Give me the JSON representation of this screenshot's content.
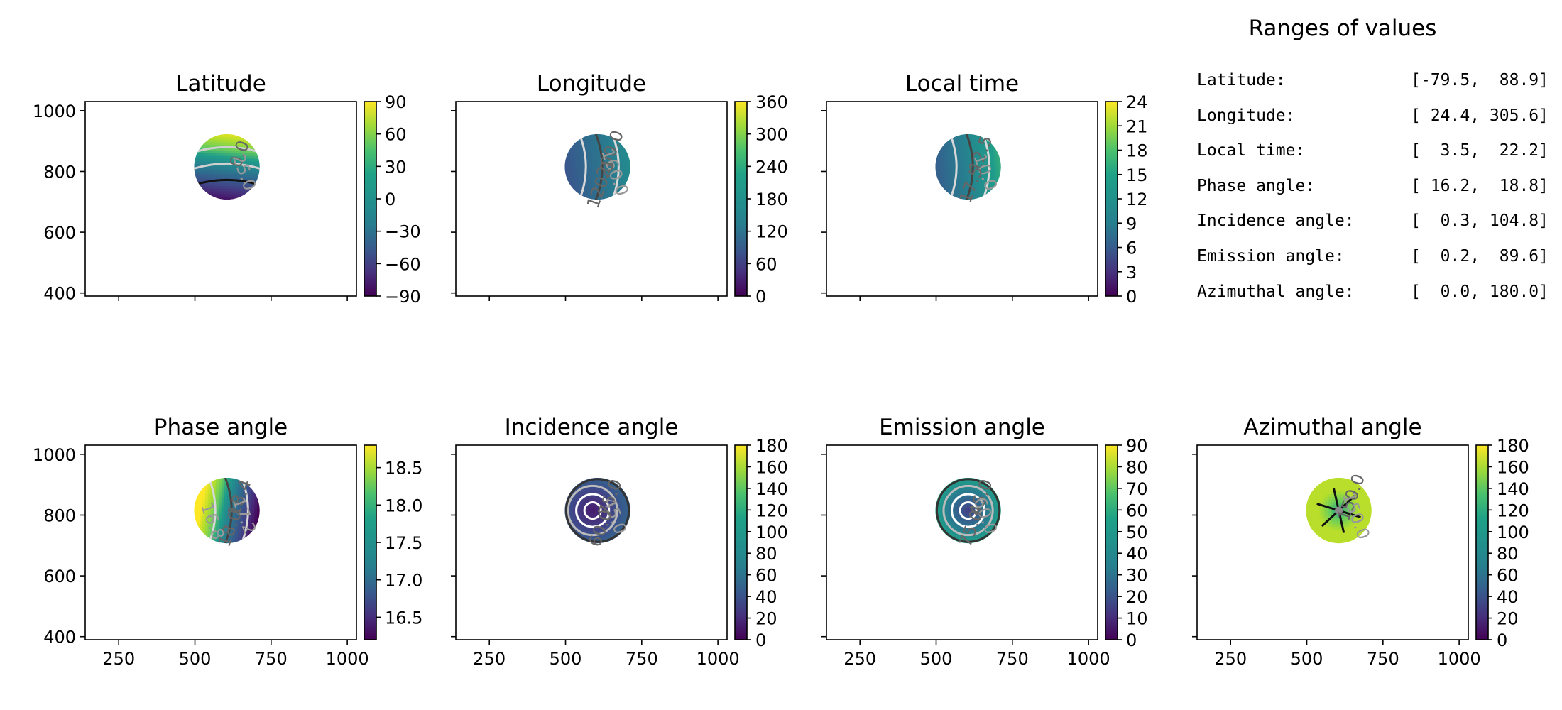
{
  "ranges_panel": {
    "title": "Ranges of values",
    "rows": [
      {
        "label": "Latitude:",
        "value": "[-79.5,  88.9]"
      },
      {
        "label": "Longitude:",
        "value": "[ 24.4, 305.6]"
      },
      {
        "label": "Local time:",
        "value": "[  3.5,  22.2]"
      },
      {
        "label": "Phase angle:",
        "value": "[ 16.2,  18.8]"
      },
      {
        "label": "Incidence angle:",
        "value": "[  0.3, 104.8]"
      },
      {
        "label": "Emission angle:",
        "value": "[  0.2,  89.6]"
      },
      {
        "label": "Azimuthal angle:",
        "value": "[  0.0, 180.0]"
      }
    ]
  },
  "chart_data": [
    {
      "type": "heatmap",
      "title": "Latitude",
      "xlim": [
        140,
        1030
      ],
      "ylim": [
        390,
        1030
      ],
      "xticks": [
        250,
        500,
        750,
        1000
      ],
      "xticklabels": [
        "",
        "",
        "",
        ""
      ],
      "yticks": [
        400,
        600,
        800,
        1000
      ],
      "yticklabels": [
        "400",
        "600",
        "800",
        "1000"
      ],
      "colorbar": {
        "min": -90,
        "max": 90,
        "ticks": [
          -90,
          -60,
          -30,
          0,
          30,
          60,
          90
        ],
        "ticklabels": [
          "−90",
          "−60",
          "−30",
          "0",
          "30",
          "60",
          "90"
        ]
      },
      "disk": {
        "cx": 605,
        "cy": 815,
        "r": 110
      },
      "field": "lat",
      "contour_labels": [
        "0.0",
        "25.0"
      ]
    },
    {
      "type": "heatmap",
      "title": "Longitude",
      "xlim": [
        140,
        1030
      ],
      "ylim": [
        390,
        1030
      ],
      "xticks": [
        250,
        500,
        750,
        1000
      ],
      "xticklabels": [
        "",
        "",
        "",
        ""
      ],
      "yticks": [
        400,
        600,
        800,
        1000
      ],
      "yticklabels": [
        "",
        "",
        "",
        ""
      ],
      "colorbar": {
        "min": 0,
        "max": 360,
        "ticks": [
          0,
          60,
          120,
          180,
          240,
          300,
          360
        ],
        "ticklabels": [
          "0",
          "60",
          "120",
          "180",
          "240",
          "300",
          "360"
        ]
      },
      "disk": {
        "cx": 605,
        "cy": 815,
        "r": 110
      },
      "field": "lon",
      "contour_labels": [
        "200.0",
        "160.0",
        "120.0"
      ]
    },
    {
      "type": "heatmap",
      "title": "Local time",
      "xlim": [
        140,
        1030
      ],
      "ylim": [
        390,
        1030
      ],
      "xticks": [
        250,
        500,
        750,
        1000
      ],
      "xticklabels": [
        "",
        "",
        "",
        ""
      ],
      "yticks": [
        400,
        600,
        800,
        1000
      ],
      "yticklabels": [
        "",
        "",
        "",
        ""
      ],
      "colorbar": {
        "min": 0,
        "max": 24,
        "ticks": [
          0,
          3,
          6,
          9,
          12,
          15,
          18,
          21,
          24
        ],
        "ticklabels": [
          "0",
          "3",
          "6",
          "9",
          "12",
          "15",
          "18",
          "21",
          "24"
        ]
      },
      "disk": {
        "cx": 605,
        "cy": 815,
        "r": 110
      },
      "field": "lt",
      "contour_labels": [
        "12.5",
        "10.0",
        "17.5"
      ]
    },
    {
      "type": "heatmap",
      "title": "Phase angle",
      "xlim": [
        140,
        1030
      ],
      "ylim": [
        390,
        1030
      ],
      "xticks": [
        250,
        500,
        750,
        1000
      ],
      "xticklabels": [
        "250",
        "500",
        "750",
        "1000"
      ],
      "yticks": [
        400,
        600,
        800,
        1000
      ],
      "yticklabels": [
        "400",
        "600",
        "800",
        "1000"
      ],
      "colorbar": {
        "min": 16.2,
        "max": 18.8,
        "ticks": [
          16.5,
          17.0,
          17.5,
          18.0,
          18.5
        ],
        "ticklabels": [
          "16.5",
          "17.0",
          "17.5",
          "18.0",
          "18.5"
        ]
      },
      "disk": {
        "cx": 605,
        "cy": 815,
        "r": 110
      },
      "field": "phase",
      "contour_labels": [
        "18.4",
        "17.2",
        "18.0",
        "16.8"
      ]
    },
    {
      "type": "heatmap",
      "title": "Incidence angle",
      "xlim": [
        140,
        1030
      ],
      "ylim": [
        390,
        1030
      ],
      "xticks": [
        250,
        500,
        750,
        1000
      ],
      "xticklabels": [
        "250",
        "500",
        "750",
        "1000"
      ],
      "yticks": [
        400,
        600,
        800,
        1000
      ],
      "yticklabels": [
        "",
        "",
        "",
        ""
      ],
      "colorbar": {
        "min": 0,
        "max": 180,
        "ticks": [
          0,
          20,
          40,
          60,
          80,
          100,
          120,
          140,
          160,
          180
        ],
        "ticklabels": [
          "0",
          "20",
          "40",
          "60",
          "80",
          "100",
          "120",
          "140",
          "160",
          "180"
        ]
      },
      "disk": {
        "cx": 605,
        "cy": 815,
        "r": 110
      },
      "field": "inc",
      "contour_labels": [
        "75.0",
        "45.0",
        "60.0"
      ]
    },
    {
      "type": "heatmap",
      "title": "Emission angle",
      "xlim": [
        140,
        1030
      ],
      "ylim": [
        390,
        1030
      ],
      "xticks": [
        250,
        500,
        750,
        1000
      ],
      "xticklabels": [
        "250",
        "500",
        "750",
        "1000"
      ],
      "yticks": [
        400,
        600,
        800,
        1000
      ],
      "yticklabels": [
        "",
        "",
        "",
        ""
      ],
      "colorbar": {
        "min": 0,
        "max": 90,
        "ticks": [
          0,
          10,
          20,
          30,
          40,
          50,
          60,
          70,
          80,
          90
        ],
        "ticklabels": [
          "0",
          "10",
          "20",
          "30",
          "40",
          "50",
          "60",
          "70",
          "80",
          "90"
        ]
      },
      "disk": {
        "cx": 605,
        "cy": 815,
        "r": 110
      },
      "field": "emi",
      "contour_labels": [
        "45.0",
        "60.0",
        "75.0"
      ]
    },
    {
      "type": "heatmap",
      "title": "Azimuthal angle",
      "xlim": [
        140,
        1030
      ],
      "ylim": [
        390,
        1030
      ],
      "xticks": [
        250,
        500,
        750,
        1000
      ],
      "xticklabels": [
        "250",
        "500",
        "750",
        "1000"
      ],
      "yticks": [
        400,
        600,
        800,
        1000
      ],
      "yticklabels": [
        "",
        "",
        "",
        ""
      ],
      "colorbar": {
        "min": 0,
        "max": 180,
        "ticks": [
          0,
          20,
          40,
          60,
          80,
          100,
          120,
          140,
          160,
          180
        ],
        "ticklabels": [
          "0",
          "20",
          "40",
          "60",
          "80",
          "100",
          "120",
          "140",
          "160",
          "180"
        ]
      },
      "disk": {
        "cx": 605,
        "cy": 815,
        "r": 110
      },
      "field": "azi",
      "contour_labels": [
        "150.0",
        "150.0"
      ]
    }
  ]
}
